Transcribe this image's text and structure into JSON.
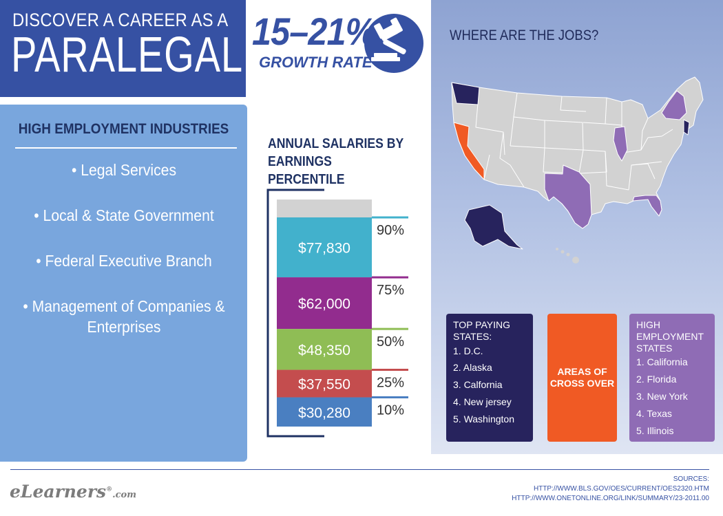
{
  "title": {
    "subtitle": "DISCOVER A CAREER AS A",
    "main": "PARALEGAL"
  },
  "growth": {
    "rate": "15–21%",
    "label": "GROWTH RATE"
  },
  "industries": {
    "heading": "HIGH EMPLOYMENT INDUSTRIES",
    "items": [
      "• Legal Services",
      "• Local & State Government",
      "• Federal Executive Branch",
      "• Management of Companies & Enterprises"
    ]
  },
  "salary": {
    "title_line1": "ANNUAL SALARIES BY",
    "title_line2": "EARNINGS PERCENTILE"
  },
  "chart_data": {
    "type": "bar",
    "title": "ANNUAL SALARIES BY EARNINGS PERCENTILE",
    "categories": [
      "90%",
      "75%",
      "50%",
      "25%",
      "10%"
    ],
    "values": [
      77830,
      62000,
      48350,
      37550,
      30280
    ],
    "labels": [
      "$77,830",
      "$62,000",
      "$48,350",
      "$37,550",
      "$30,280"
    ],
    "colors": [
      "#42b1cc",
      "#922c8e",
      "#8fbd55",
      "#c44d4e",
      "#4a7fc1"
    ]
  },
  "map": {
    "title": "WHERE ARE THE JOBS?",
    "colors": {
      "top_paying": "#27235d",
      "cross_over": "#f05a24",
      "high_employment": "#8f6cb5",
      "other": "#d2d2d2"
    }
  },
  "top_paying": {
    "heading": "TOP PAYING STATES:",
    "items": [
      "1. D.C.",
      "2. Alaska",
      "3. Calfornia",
      "4. New jersey",
      "5. Washington"
    ]
  },
  "cross_over": {
    "label": "AREAS OF CROSS OVER"
  },
  "high_employment": {
    "heading": "HIGH EMPLOYMENT STATES",
    "items": [
      "1. California",
      "2. Florida",
      "3. New York",
      "4. Texas",
      "5. Illinois"
    ]
  },
  "footer": {
    "logo_main": "eLearners",
    "logo_mark": "®",
    "logo_suffix": ".com",
    "sources_label": "SOURCES:",
    "sources": [
      "HTTP://WWW.BLS.GOV/OES/CURRENT/OES2320.HTM",
      "HTTP://WWW.ONETONLINE.ORG/LINK/SUMMARY/23-2011.00"
    ]
  }
}
